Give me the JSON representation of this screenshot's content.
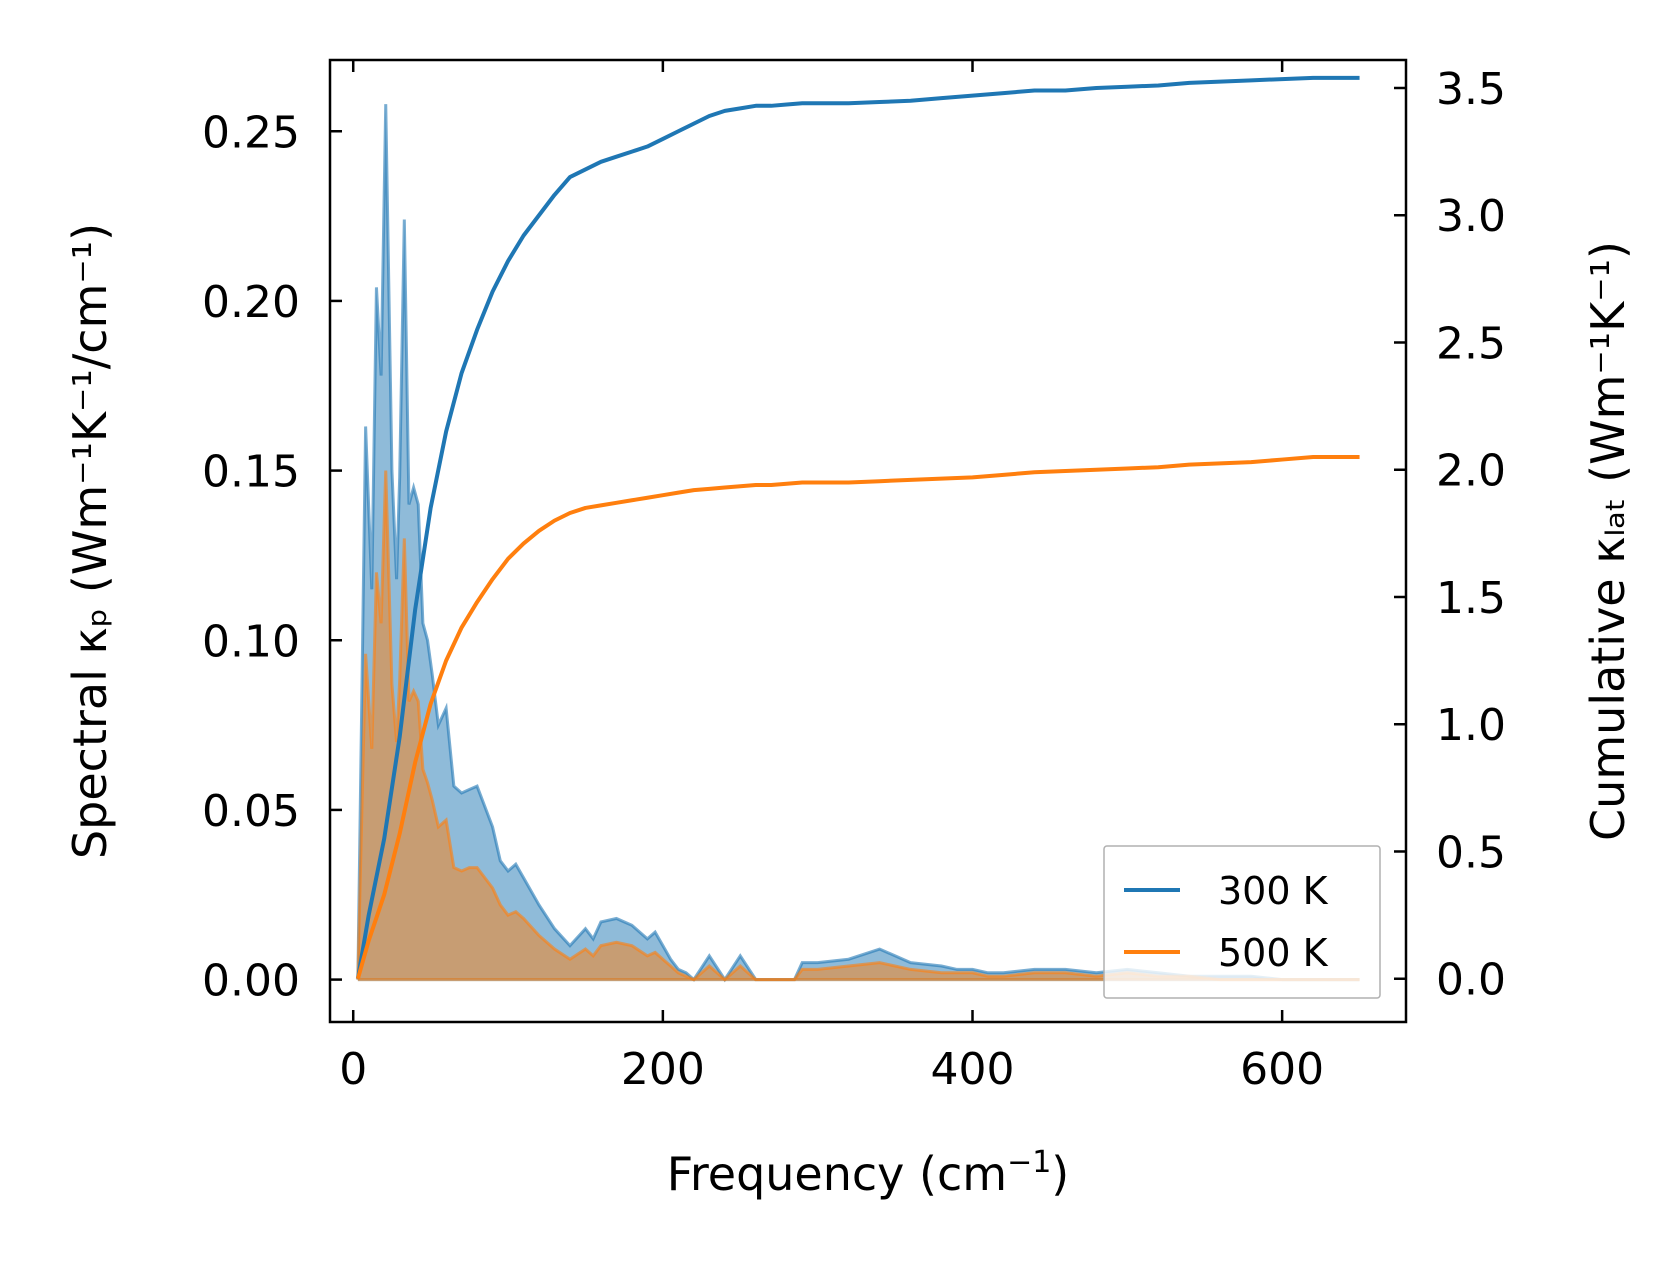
{
  "chart_data": {
    "type": "area",
    "xlabel": {
      "base": "Frequency (cm",
      "sup": "−1",
      "end": ")"
    },
    "ylabel_left": "Spectral κₚ (Wm⁻¹K⁻¹/cm⁻¹)",
    "ylabel_right": "Cumulative κₗₐₜ (Wm⁻¹K⁻¹)",
    "xlim": [
      -15,
      680
    ],
    "ylim_left": [
      -0.0125,
      0.271
    ],
    "ylim_right": [
      -0.17,
      3.61
    ],
    "x_ticks": [
      0,
      200,
      400,
      600
    ],
    "x_tick_labels": [
      "0",
      "200",
      "400",
      "600"
    ],
    "y_left_ticks": [
      0.0,
      0.05,
      0.1,
      0.15,
      0.2,
      0.25
    ],
    "y_left_tick_labels": [
      "0.00",
      "0.05",
      "0.10",
      "0.15",
      "0.20",
      "0.25"
    ],
    "y_right_ticks": [
      0.0,
      0.5,
      1.0,
      1.5,
      2.0,
      2.5,
      3.0,
      3.5
    ],
    "y_right_tick_labels": [
      "0.0",
      "0.5",
      "1.0",
      "1.5",
      "2.0",
      "2.5",
      "3.0",
      "3.5"
    ],
    "legend": {
      "position": "lower-right",
      "entries": [
        "300 K",
        "500 K"
      ]
    },
    "series": [
      {
        "name": "300 K",
        "color": "#1f77b4",
        "fill_color": "#1f77b4",
        "spectral": {
          "x": [
            3,
            8,
            12,
            15,
            18,
            21,
            25,
            28,
            30,
            33,
            36,
            39,
            42,
            45,
            48,
            51,
            55,
            60,
            65,
            70,
            75,
            80,
            90,
            95,
            100,
            105,
            110,
            120,
            130,
            140,
            150,
            155,
            160,
            170,
            180,
            190,
            195,
            200,
            205,
            210,
            215,
            220,
            230,
            240,
            250,
            260,
            270,
            275,
            280,
            285,
            290,
            295,
            300,
            320,
            340,
            360,
            380,
            390,
            400,
            410,
            420,
            440,
            460,
            480,
            500,
            520,
            540,
            560,
            580,
            600,
            620,
            650
          ],
          "y": [
            0.0,
            0.163,
            0.115,
            0.204,
            0.178,
            0.258,
            0.15,
            0.118,
            0.148,
            0.224,
            0.14,
            0.145,
            0.14,
            0.105,
            0.1,
            0.09,
            0.075,
            0.08,
            0.057,
            0.055,
            0.056,
            0.057,
            0.045,
            0.035,
            0.032,
            0.034,
            0.03,
            0.022,
            0.015,
            0.01,
            0.015,
            0.012,
            0.017,
            0.018,
            0.016,
            0.012,
            0.014,
            0.01,
            0.006,
            0.003,
            0.002,
            0.0,
            0.007,
            0.0,
            0.007,
            0.0,
            0.0,
            0.0,
            0.0,
            0.0,
            0.005,
            0.005,
            0.005,
            0.006,
            0.009,
            0.005,
            0.004,
            0.003,
            0.003,
            0.002,
            0.002,
            0.003,
            0.003,
            0.002,
            0.003,
            0.002,
            0.001,
            0.001,
            0.001,
            0.0,
            0.0,
            0.0
          ]
        },
        "cumulative": {
          "x": [
            3,
            10,
            20,
            30,
            40,
            50,
            60,
            70,
            80,
            90,
            100,
            110,
            120,
            130,
            140,
            150,
            160,
            170,
            180,
            190,
            200,
            210,
            220,
            230,
            240,
            250,
            260,
            270,
            280,
            290,
            300,
            320,
            340,
            360,
            380,
            400,
            420,
            440,
            460,
            480,
            500,
            520,
            540,
            560,
            580,
            600,
            620,
            650
          ],
          "y": [
            0.0,
            0.25,
            0.55,
            0.95,
            1.45,
            1.85,
            2.15,
            2.38,
            2.55,
            2.7,
            2.82,
            2.92,
            3.0,
            3.08,
            3.15,
            3.18,
            3.21,
            3.23,
            3.25,
            3.27,
            3.3,
            3.33,
            3.36,
            3.39,
            3.41,
            3.42,
            3.43,
            3.43,
            3.435,
            3.44,
            3.44,
            3.44,
            3.445,
            3.45,
            3.46,
            3.47,
            3.48,
            3.49,
            3.49,
            3.5,
            3.505,
            3.51,
            3.52,
            3.525,
            3.53,
            3.535,
            3.54,
            3.54
          ]
        }
      },
      {
        "name": "500 K",
        "color": "#ff7f0e",
        "fill_color": "#ff7f0e",
        "spectral": {
          "x": [
            3,
            8,
            12,
            15,
            18,
            21,
            25,
            28,
            30,
            33,
            36,
            39,
            42,
            45,
            48,
            51,
            55,
            60,
            65,
            70,
            75,
            80,
            90,
            95,
            100,
            105,
            110,
            120,
            130,
            140,
            150,
            155,
            160,
            170,
            180,
            190,
            195,
            200,
            205,
            210,
            215,
            220,
            230,
            240,
            250,
            260,
            270,
            275,
            280,
            285,
            290,
            295,
            300,
            320,
            340,
            360,
            380,
            390,
            400,
            410,
            420,
            440,
            460,
            480,
            500,
            520,
            540,
            560,
            580,
            600,
            620,
            650
          ],
          "y": [
            0.0,
            0.096,
            0.068,
            0.12,
            0.105,
            0.15,
            0.087,
            0.07,
            0.088,
            0.13,
            0.082,
            0.085,
            0.082,
            0.062,
            0.058,
            0.053,
            0.045,
            0.047,
            0.033,
            0.032,
            0.033,
            0.033,
            0.027,
            0.022,
            0.019,
            0.02,
            0.018,
            0.013,
            0.009,
            0.006,
            0.009,
            0.007,
            0.01,
            0.011,
            0.01,
            0.007,
            0.008,
            0.006,
            0.004,
            0.002,
            0.001,
            0.0,
            0.004,
            0.0,
            0.004,
            0.0,
            0.0,
            0.0,
            0.0,
            0.0,
            0.003,
            0.003,
            0.003,
            0.004,
            0.005,
            0.003,
            0.002,
            0.002,
            0.002,
            0.001,
            0.001,
            0.002,
            0.002,
            0.001,
            0.002,
            0.001,
            0.001,
            0.0,
            0.0,
            0.0,
            0.0,
            0.0
          ]
        },
        "cumulative": {
          "x": [
            3,
            10,
            20,
            30,
            40,
            50,
            60,
            70,
            80,
            90,
            100,
            110,
            120,
            130,
            140,
            150,
            160,
            170,
            180,
            190,
            200,
            210,
            220,
            230,
            240,
            250,
            260,
            270,
            280,
            290,
            300,
            320,
            340,
            360,
            380,
            400,
            420,
            440,
            460,
            480,
            500,
            520,
            540,
            560,
            580,
            600,
            620,
            650
          ],
          "y": [
            0.0,
            0.15,
            0.33,
            0.57,
            0.85,
            1.08,
            1.25,
            1.38,
            1.48,
            1.57,
            1.65,
            1.71,
            1.76,
            1.8,
            1.83,
            1.85,
            1.86,
            1.87,
            1.88,
            1.89,
            1.9,
            1.91,
            1.92,
            1.925,
            1.93,
            1.935,
            1.94,
            1.94,
            1.945,
            1.95,
            1.95,
            1.95,
            1.955,
            1.96,
            1.965,
            1.97,
            1.98,
            1.99,
            1.995,
            2.0,
            2.005,
            2.01,
            2.02,
            2.025,
            2.03,
            2.04,
            2.05,
            2.05
          ]
        }
      }
    ]
  }
}
